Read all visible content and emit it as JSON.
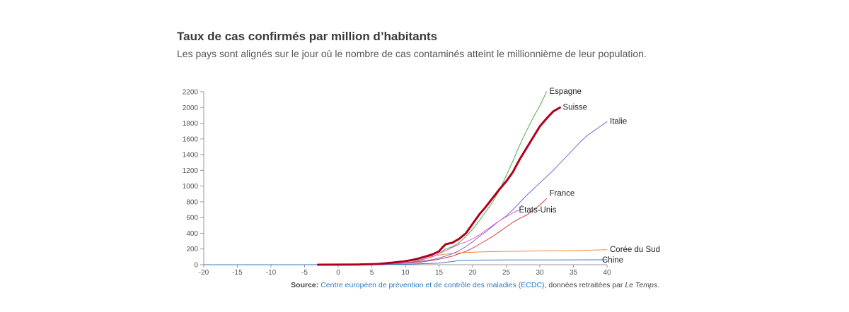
{
  "title": "Taux de cas confirmés par million d’habitants",
  "subtitle": "Les pays sont alignés sur le jour où le nombre de cas contaminés atteint le millionnième de leur population.",
  "source": {
    "label": "Source:",
    "link_text": "Centre européen de prévention et de contrôle des maladies (ECDC)",
    "suffix": ", données retraitées par",
    "publisher": "Le Temps."
  },
  "chart_data": {
    "type": "line",
    "title": "Taux de cas confirmés par million d’habitants",
    "xlabel": "",
    "ylabel": "",
    "xlim": [
      -20,
      40
    ],
    "ylim": [
      0,
      2200
    ],
    "x_ticks": [
      -20,
      -15,
      -10,
      -5,
      0,
      5,
      10,
      15,
      20,
      25,
      30,
      35,
      40
    ],
    "y_ticks": [
      0,
      200,
      400,
      600,
      800,
      1000,
      1200,
      1400,
      1600,
      1800,
      2000,
      2200
    ],
    "grid": false,
    "series": [
      {
        "name": "Espagne",
        "color": "#4caf50",
        "x": [
          -3,
          0,
          5,
          8,
          10,
          12,
          14,
          15,
          16,
          17,
          18,
          19,
          20,
          21,
          22,
          23,
          24,
          25,
          26,
          27,
          28,
          29,
          30,
          31
        ],
        "y": [
          0,
          2,
          6,
          20,
          40,
          60,
          100,
          140,
          200,
          230,
          280,
          360,
          450,
          560,
          680,
          800,
          950,
          1130,
          1320,
          1520,
          1700,
          1870,
          2020,
          2200
        ]
      },
      {
        "name": "Suisse",
        "color": "#b0001e",
        "x": [
          -3,
          0,
          3,
          5,
          6,
          7,
          8,
          9,
          10,
          11,
          12,
          13,
          14,
          15,
          15.5,
          16,
          17,
          18,
          19,
          20,
          21,
          22,
          23,
          24,
          25,
          26,
          27,
          28,
          29,
          30,
          31,
          32,
          33
        ],
        "y": [
          0,
          1,
          3,
          6,
          10,
          18,
          26,
          35,
          45,
          60,
          80,
          105,
          130,
          170,
          220,
          260,
          280,
          330,
          400,
          520,
          640,
          740,
          850,
          960,
          1060,
          1180,
          1340,
          1480,
          1620,
          1760,
          1860,
          1950,
          2000
        ]
      },
      {
        "name": "Italie",
        "color": "#7b68c8",
        "x": [
          -3,
          0,
          5,
          8,
          10,
          12,
          14,
          15,
          16,
          17,
          18,
          19,
          20,
          21,
          22,
          23,
          24,
          25,
          26,
          27,
          28,
          29,
          30,
          31,
          32,
          33,
          34,
          35,
          36,
          37,
          38,
          39,
          40
        ],
        "y": [
          0,
          1,
          5,
          12,
          22,
          40,
          65,
          85,
          110,
          140,
          180,
          230,
          290,
          360,
          420,
          490,
          560,
          620,
          700,
          790,
          880,
          960,
          1040,
          1120,
          1200,
          1290,
          1380,
          1470,
          1560,
          1640,
          1700,
          1760,
          1820
        ]
      },
      {
        "name": "France",
        "color": "#d9393e",
        "x": [
          -3,
          0,
          5,
          8,
          10,
          12,
          14,
          15,
          16,
          17,
          18,
          19,
          20,
          21,
          22,
          23,
          24,
          25,
          26,
          27,
          28,
          29,
          30,
          31
        ],
        "y": [
          0,
          1,
          4,
          10,
          18,
          30,
          55,
          70,
          90,
          110,
          140,
          170,
          210,
          260,
          310,
          360,
          420,
          480,
          540,
          590,
          630,
          690,
          760,
          840
        ]
      },
      {
        "name": "États-Unis",
        "color": "#e35fd0",
        "x": [
          -20,
          -15,
          -10,
          -5,
          0,
          5,
          8,
          10,
          12,
          14,
          15,
          16,
          17,
          18,
          19,
          20,
          21,
          22,
          23,
          24,
          25,
          26,
          27
        ],
        "y": [
          0,
          0,
          0,
          0,
          1,
          3,
          10,
          25,
          50,
          100,
          140,
          180,
          220,
          260,
          290,
          330,
          380,
          440,
          500,
          560,
          610,
          660,
          700
        ]
      },
      {
        "name": "Corée du Sud",
        "color": "#f08a3c",
        "x": [
          -20,
          -15,
          -10,
          -5,
          0,
          5,
          8,
          10,
          12,
          14,
          16,
          18,
          20,
          22,
          25,
          30,
          35,
          40
        ],
        "y": [
          0,
          0,
          0,
          0,
          1,
          5,
          15,
          40,
          80,
          110,
          135,
          150,
          160,
          165,
          170,
          175,
          180,
          190
        ]
      },
      {
        "name": "Chine",
        "color": "#3a78c2",
        "x": [
          -20,
          -15,
          -10,
          -5,
          0,
          5,
          10,
          15,
          17,
          18,
          20,
          25,
          30,
          35,
          40
        ],
        "y": [
          0,
          0,
          0,
          0,
          1,
          2,
          5,
          20,
          40,
          55,
          58,
          60,
          61,
          62,
          63
        ]
      }
    ],
    "series_order_label": [
      "Espagne",
      "Suisse",
      "Italie",
      "France",
      "États-Unis",
      "Corée du Sud",
      "Chine"
    ]
  }
}
